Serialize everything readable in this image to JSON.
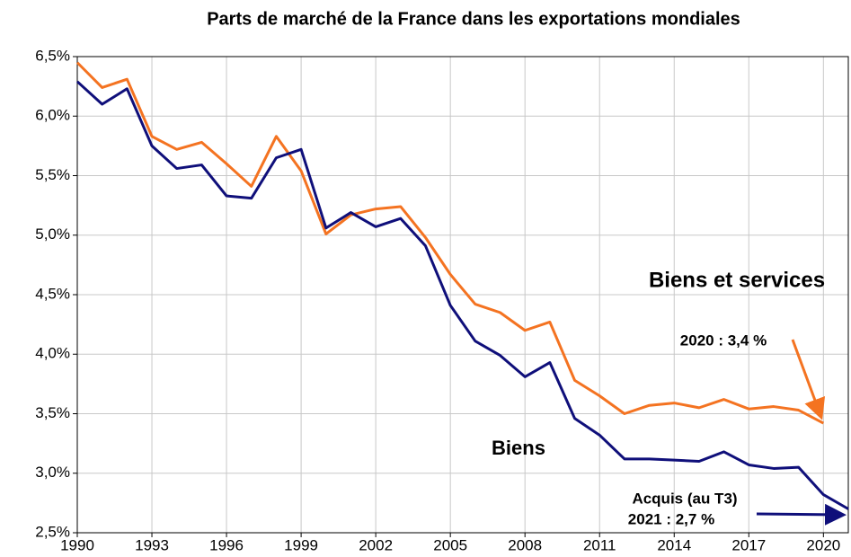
{
  "chart_data": {
    "type": "line",
    "title": "Parts de marché de la France dans les exportations mondiales",
    "x": [
      1990,
      1991,
      1992,
      1993,
      1994,
      1995,
      1996,
      1997,
      1998,
      1999,
      2000,
      2001,
      2002,
      2003,
      2004,
      2005,
      2006,
      2007,
      2008,
      2009,
      2010,
      2011,
      2012,
      2013,
      2014,
      2015,
      2016,
      2017,
      2018,
      2019,
      2020,
      2021
    ],
    "series": [
      {
        "name": "Biens et services",
        "color": "#f47321",
        "values": [
          6.45,
          6.24,
          6.31,
          5.83,
          5.72,
          5.78,
          5.6,
          5.41,
          5.83,
          5.54,
          5.01,
          5.17,
          5.22,
          5.24,
          4.98,
          4.67,
          4.42,
          4.35,
          4.2,
          4.27,
          3.78,
          3.65,
          3.5,
          3.57,
          3.59,
          3.55,
          3.62,
          3.54,
          3.56,
          3.53,
          3.42,
          null
        ]
      },
      {
        "name": "Biens",
        "color": "#0f0f7a",
        "values": [
          6.29,
          6.1,
          6.23,
          5.75,
          5.56,
          5.59,
          5.33,
          5.31,
          5.65,
          5.72,
          5.06,
          5.19,
          5.07,
          5.14,
          4.91,
          4.41,
          4.11,
          3.99,
          3.81,
          3.93,
          3.46,
          3.32,
          3.12,
          3.12,
          3.11,
          3.1,
          3.18,
          3.07,
          3.04,
          3.05,
          2.82,
          2.7
        ]
      }
    ],
    "annotations": [
      "2020 : 3,4 %",
      "Acquis (au T3)",
      "2021 : 2,7 %"
    ],
    "xlim": [
      1990,
      2021
    ],
    "xticks": [
      1990,
      1993,
      1996,
      1999,
      2002,
      2005,
      2008,
      2011,
      2014,
      2017,
      2020
    ],
    "ylim": [
      2.5,
      6.5
    ],
    "yticks": [
      {
        "value": 2.5,
        "label": "2,5%"
      },
      {
        "value": 3,
        "label": "3,0%"
      },
      {
        "value": 3.5,
        "label": "3,5%"
      },
      {
        "value": 4,
        "label": "4,0%"
      },
      {
        "value": 4.5,
        "label": "4,5%"
      },
      {
        "value": 5,
        "label": "5,0%"
      },
      {
        "value": 5.5,
        "label": "5,5%"
      },
      {
        "value": 6,
        "label": "6,0%"
      },
      {
        "value": 6.5,
        "label": "6,5%"
      }
    ],
    "grid": true
  }
}
